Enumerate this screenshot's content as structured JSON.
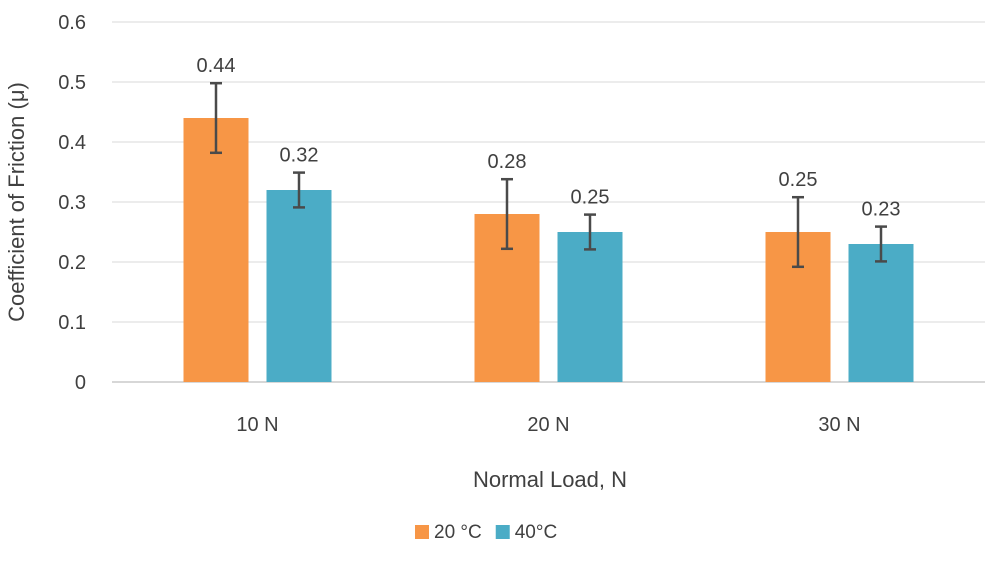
{
  "chart_data": {
    "type": "bar",
    "title": "",
    "xlabel": "Normal Load, N",
    "ylabel": "Coefficient of Friction (μ)",
    "categories": [
      "10 N",
      "20 N",
      "30 N"
    ],
    "series": [
      {
        "name": "20 °C",
        "color": "#f79646",
        "values": [
          0.44,
          0.28,
          0.25
        ],
        "labels": [
          "0.44",
          "0.28",
          "0.25"
        ],
        "error": [
          0.058,
          0.058,
          0.058
        ]
      },
      {
        "name": "40°C",
        "color": "#4bacc6",
        "values": [
          0.32,
          0.25,
          0.23
        ],
        "labels": [
          "0.32",
          "0.25",
          "0.23"
        ],
        "error": [
          0.029,
          0.029,
          0.029
        ]
      }
    ],
    "ylim": [
      0,
      0.6
    ],
    "yticks": [
      0,
      0.1,
      0.2,
      0.3,
      0.4,
      0.5,
      0.6
    ],
    "ytick_labels": [
      "0",
      "0.1",
      "0.2",
      "0.3",
      "0.4",
      "0.5",
      "0.6"
    ],
    "grid": true,
    "legend_position": "bottom-center"
  }
}
